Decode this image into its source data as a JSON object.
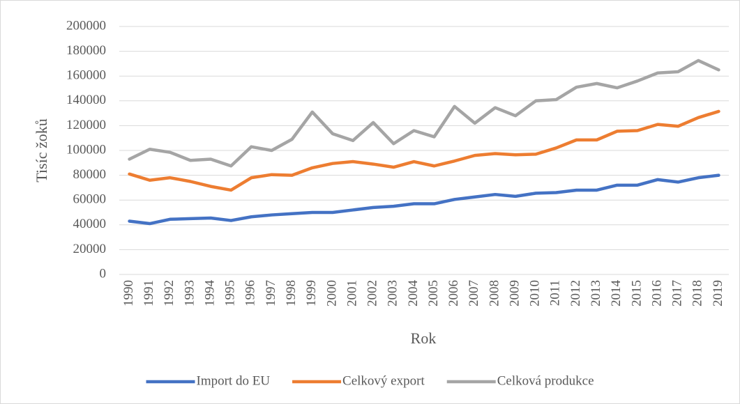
{
  "chart_data": {
    "type": "line",
    "y_label": "Tisíc žoků",
    "x_label": "Rok",
    "categories": [
      "1990",
      "1991",
      "1992",
      "1993",
      "1994",
      "1995",
      "1996",
      "1997",
      "1998",
      "1999",
      "2000",
      "2001",
      "2002",
      "2003",
      "2004",
      "2005",
      "2006",
      "2007",
      "2008",
      "2009",
      "2010",
      "2011",
      "2012",
      "2013",
      "2014",
      "2015",
      "2016",
      "2017",
      "2018",
      "2019"
    ],
    "series": [
      {
        "name": "Import do EU",
        "color": "#4472c4",
        "values": [
          43000,
          41000,
          44500,
          45000,
          45500,
          43500,
          46500,
          48000,
          49000,
          50000,
          50000,
          52000,
          54000,
          55000,
          57000,
          57000,
          60500,
          62500,
          64500,
          63000,
          65500,
          66000,
          68000,
          68000,
          72000,
          72000,
          76500,
          74500,
          78000,
          80000
        ]
      },
      {
        "name": "Celkový export",
        "color": "#ed7d31",
        "values": [
          81000,
          76000,
          78000,
          75000,
          71000,
          68000,
          78000,
          80500,
          80000,
          86000,
          89500,
          91000,
          89000,
          86500,
          91000,
          87500,
          91500,
          96000,
          97500,
          96500,
          97000,
          102000,
          108500,
          108500,
          115500,
          116000,
          121000,
          119500,
          126500,
          131500
        ]
      },
      {
        "name": "Celková produkce",
        "color": "#a5a5a5",
        "values": [
          93000,
          101000,
          98500,
          92000,
          93000,
          87500,
          103000,
          100000,
          109000,
          131000,
          113500,
          108000,
          122500,
          105500,
          116000,
          111000,
          135500,
          122000,
          134500,
          128000,
          140000,
          141000,
          151000,
          154000,
          150500,
          156000,
          162500,
          163500,
          172500,
          165000
        ]
      }
    ],
    "ylim": [
      0,
      200000
    ],
    "yticks": [
      0,
      20000,
      40000,
      60000,
      80000,
      100000,
      120000,
      140000,
      160000,
      180000,
      200000
    ],
    "grid": true,
    "legend": "bottom"
  }
}
